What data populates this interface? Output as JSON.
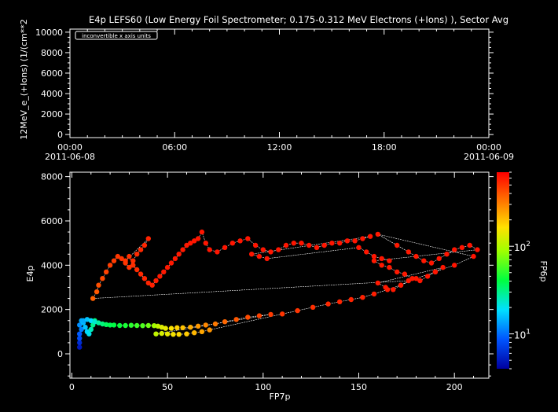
{
  "chart_data": [
    {
      "type": "line",
      "title": "E4p LEFS60 (Low Energy Foil Spectrometer; 0.175-0.312 MeV Electrons (+Ions) ), Sector Avg",
      "ylabel": "12MeV_e_(+Ions) (1/(cm**2",
      "xlabel": "",
      "ylim": [
        -300,
        10300
      ],
      "yticks": [
        "0",
        "2000",
        "4000",
        "6000",
        "8000",
        "10000"
      ],
      "ytick_values": [
        0,
        2000,
        4000,
        6000,
        8000,
        10000
      ],
      "xticks": [
        {
          "time": "00:00",
          "date": "2011-06-08"
        },
        {
          "time": "06:00",
          "date": ""
        },
        {
          "time": "12:00",
          "date": ""
        },
        {
          "time": "18:00",
          "date": ""
        },
        {
          "time": "00:00",
          "date": "2011-06-09"
        }
      ],
      "annotation": "inconvertible x axis units",
      "grid": false,
      "series": []
    },
    {
      "type": "scatter",
      "title": "",
      "xlabel": "FP7p",
      "ylabel": "E4p",
      "xlim": [
        -1,
        218
      ],
      "ylim": [
        -1100,
        8200
      ],
      "xticks": [
        "0",
        "50",
        "100",
        "150",
        "200"
      ],
      "xtick_values": [
        0,
        50,
        100,
        150,
        200
      ],
      "yticks": [
        "0",
        "2000",
        "4000",
        "6000",
        "8000"
      ],
      "ytick_values": [
        0,
        2000,
        4000,
        6000,
        8000
      ],
      "grid": false,
      "colorbar": {
        "label": "FP6p",
        "scale": "log",
        "range": [
          4,
          700
        ],
        "ticks": [
          {
            "value": 10,
            "base": "10",
            "exp": "1"
          },
          {
            "value": 100,
            "base": "10",
            "exp": "2"
          }
        ]
      },
      "series": [
        {
          "connected": true,
          "points": [
            [
              4,
              300,
              5
            ],
            [
              4,
              500,
              6
            ],
            [
              4,
              700,
              8
            ],
            [
              4,
              900,
              9
            ],
            [
              5,
              1100,
              11
            ],
            [
              4,
              1300,
              12
            ],
            [
              5,
              1500,
              14
            ],
            [
              6,
              1400,
              15
            ],
            [
              7,
              1200,
              16
            ],
            [
              8,
              1000,
              18
            ],
            [
              9,
              900,
              20
            ],
            [
              10,
              1100,
              25
            ],
            [
              11,
              1300,
              30
            ],
            [
              12,
              1500,
              35
            ],
            [
              6,
              1500,
              14
            ],
            [
              8,
              1550,
              16
            ],
            [
              10,
              1500,
              19
            ],
            [
              12,
              1450,
              23
            ],
            [
              14,
              1400,
              28
            ],
            [
              16,
              1350,
              32
            ],
            [
              18,
              1320,
              36
            ],
            [
              20,
              1300,
              38
            ],
            [
              22,
              1300,
              40
            ],
            [
              25,
              1280,
              43
            ],
            [
              28,
              1280,
              46
            ],
            [
              31,
              1290,
              50
            ],
            [
              34,
              1280,
              55
            ],
            [
              37,
              1270,
              60
            ],
            [
              40,
              1280,
              70
            ],
            [
              43,
              1270,
              90
            ],
            [
              45,
              1250,
              110
            ],
            [
              47,
              1200,
              130
            ],
            [
              49,
              1150,
              140
            ],
            [
              52,
              1150,
              160
            ],
            [
              55,
              1180,
              180
            ],
            [
              58,
              1180,
              200
            ],
            [
              62,
              1200,
              230
            ],
            [
              66,
              1250,
              260
            ],
            [
              70,
              1300,
              290
            ],
            [
              75,
              1350,
              320
            ],
            [
              80,
              1450,
              360
            ],
            [
              86,
              1550,
              400
            ],
            [
              92,
              1650,
              430
            ],
            [
              98,
              1720,
              460
            ],
            [
              104,
              1780,
              480
            ],
            [
              44,
              900,
              110
            ],
            [
              47,
              920,
              125
            ],
            [
              50,
              900,
              140
            ],
            [
              53,
              880,
              155
            ],
            [
              56,
              880,
              170
            ],
            [
              60,
              900,
              190
            ],
            [
              64,
              950,
              215
            ],
            [
              68,
              1000,
              240
            ],
            [
              72,
              1080,
              270
            ],
            [
              110,
              1800,
              500
            ],
            [
              118,
              1950,
              500
            ],
            [
              126,
              2100,
              520
            ],
            [
              134,
              2250,
              540
            ],
            [
              140,
              2350,
              550
            ],
            [
              146,
              2450,
              560
            ],
            [
              152,
              2550,
              570
            ],
            [
              158,
              2700,
              580
            ],
            [
              165,
              2900,
              590
            ],
            [
              172,
              3100,
              600
            ],
            [
              180,
              3400,
              600
            ],
            [
              190,
              3700,
              610
            ],
            [
              200,
              4000,
              620
            ],
            [
              210,
              4400,
              620
            ],
            [
              160,
              5400,
              600
            ],
            [
              170,
              4900,
              600
            ],
            [
              176,
              4600,
              600
            ],
            [
              180,
              4400,
              600
            ],
            [
              184,
              4200,
              600
            ],
            [
              188,
              4100,
              610
            ],
            [
              192,
              4300,
              610
            ],
            [
              196,
              4500,
              610
            ],
            [
              200,
              4700,
              620
            ],
            [
              204,
              4800,
              620
            ],
            [
              208,
              4900,
              620
            ],
            [
              212,
              4700,
              620
            ],
            [
              158,
              4200,
              600
            ],
            [
              162,
              4000,
              600
            ],
            [
              166,
              3900,
              600
            ],
            [
              170,
              3700,
              600
            ],
            [
              174,
              3600,
              600
            ],
            [
              178,
              3400,
              600
            ],
            [
              182,
              3300,
              610
            ],
            [
              186,
              3500,
              610
            ],
            [
              190,
              3700,
              610
            ],
            [
              194,
              3900,
              610
            ],
            [
              160,
              3200,
              600
            ],
            [
              164,
              3000,
              600
            ],
            [
              168,
              2900,
              600
            ],
            [
              172,
              3100,
              600
            ],
            [
              176,
              3300,
              600
            ],
            [
              11,
              2500,
              380
            ],
            [
              13,
              2800,
              400
            ],
            [
              14,
              3100,
              420
            ],
            [
              16,
              3400,
              440
            ],
            [
              18,
              3700,
              460
            ],
            [
              20,
              4000,
              470
            ],
            [
              22,
              4200,
              480
            ],
            [
              24,
              4400,
              490
            ],
            [
              26,
              4300,
              500
            ],
            [
              28,
              4100,
              500
            ],
            [
              30,
              3900,
              510
            ],
            [
              32,
              4200,
              520
            ],
            [
              34,
              4500,
              530
            ],
            [
              36,
              4700,
              540
            ],
            [
              38,
              4900,
              550
            ],
            [
              40,
              5200,
              560
            ],
            [
              28,
              4200,
              500
            ],
            [
              30,
              4400,
              510
            ],
            [
              32,
              4000,
              520
            ],
            [
              34,
              3800,
              530
            ],
            [
              36,
              3600,
              540
            ],
            [
              38,
              3400,
              550
            ],
            [
              40,
              3200,
              560
            ],
            [
              42,
              3100,
              570
            ],
            [
              44,
              3300,
              580
            ],
            [
              46,
              3500,
              590
            ],
            [
              48,
              3700,
              600
            ],
            [
              50,
              3900,
              600
            ],
            [
              52,
              4100,
              600
            ],
            [
              54,
              4300,
              600
            ],
            [
              56,
              4500,
              600
            ],
            [
              58,
              4700,
              600
            ],
            [
              60,
              4900,
              600
            ],
            [
              62,
              5000,
              610
            ],
            [
              64,
              5100,
              610
            ],
            [
              66,
              5200,
              610
            ],
            [
              68,
              5500,
              610
            ],
            [
              70,
              5000,
              610
            ],
            [
              72,
              4700,
              610
            ],
            [
              76,
              4600,
              610
            ],
            [
              80,
              4800,
              610
            ],
            [
              84,
              5000,
              610
            ],
            [
              88,
              5100,
              610
            ],
            [
              92,
              5200,
              610
            ],
            [
              96,
              4900,
              610
            ],
            [
              100,
              4700,
              610
            ],
            [
              104,
              4600,
              610
            ],
            [
              108,
              4700,
              610
            ],
            [
              112,
              4900,
              610
            ],
            [
              116,
              5000,
              610
            ],
            [
              120,
              5000,
              610
            ],
            [
              124,
              4900,
              610
            ],
            [
              128,
              4800,
              610
            ],
            [
              132,
              4900,
              610
            ],
            [
              136,
              5000,
              610
            ],
            [
              140,
              5000,
              610
            ],
            [
              144,
              5100,
              610
            ],
            [
              148,
              5100,
              610
            ],
            [
              152,
              5200,
              610
            ],
            [
              156,
              5300,
              610
            ],
            [
              94,
              4500,
              610
            ],
            [
              98,
              4400,
              610
            ],
            [
              102,
              4300,
              610
            ],
            [
              150,
              4800,
              610
            ],
            [
              154,
              4600,
              610
            ],
            [
              158,
              4400,
              610
            ],
            [
              162,
              4300,
              610
            ],
            [
              166,
              4200,
              610
            ]
          ]
        }
      ]
    }
  ]
}
